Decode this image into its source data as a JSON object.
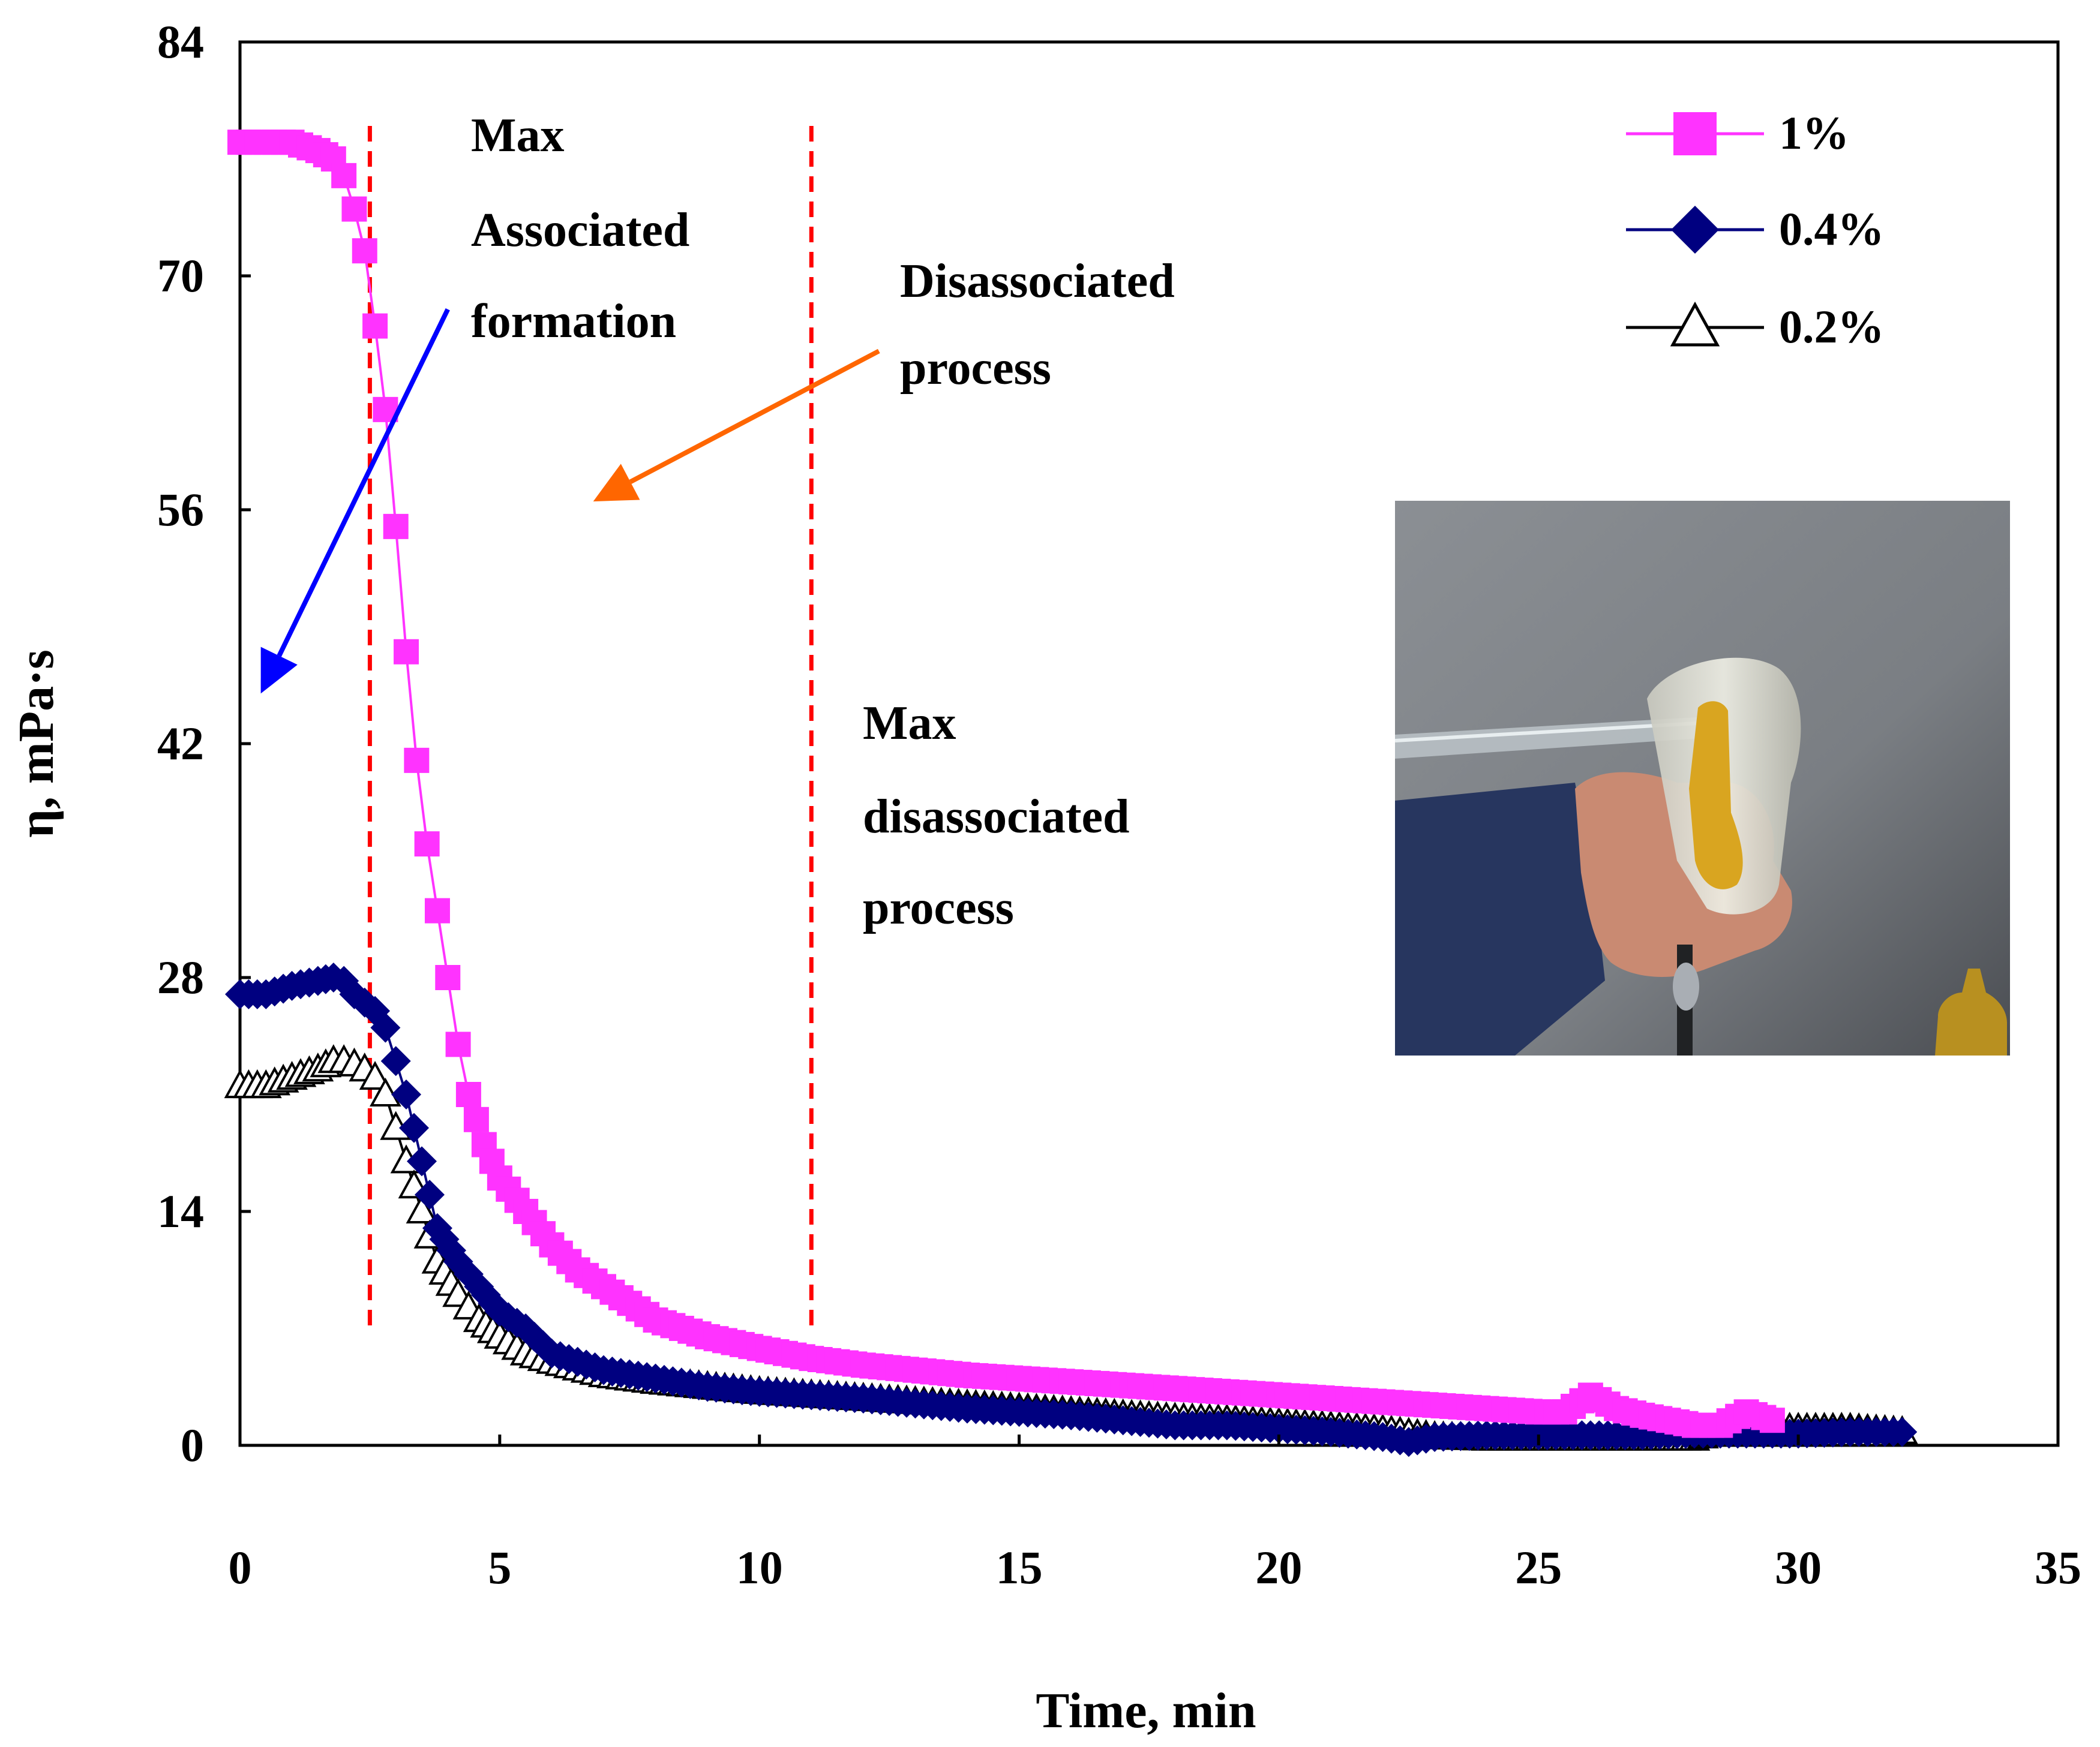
{
  "chart_data": {
    "type": "line",
    "title": "",
    "xlabel": "Time, min",
    "ylabel": "η, mPa·s",
    "xlim": [
      0,
      35
    ],
    "ylim": [
      0,
      84
    ],
    "xticks": [
      0,
      5,
      10,
      15,
      20,
      25,
      30,
      35
    ],
    "yticks": [
      0,
      14,
      28,
      42,
      56,
      70,
      84
    ],
    "xtick_labels": [
      "0",
      "5",
      "10",
      "15",
      "20",
      "25",
      "30",
      "35"
    ],
    "ytick_labels": [
      "0",
      "14",
      "28",
      "42",
      "56",
      "70",
      "84"
    ],
    "grid": false,
    "legend_position": "top-right",
    "series": [
      {
        "name": "1%",
        "marker": "square",
        "color": "#ff33ff",
        "x": [
          0,
          0.5,
          1,
          1.5,
          1.8,
          2.0,
          2.2,
          2.4,
          2.6,
          2.8,
          3.0,
          3.2,
          3.4,
          3.6,
          3.8,
          4.0,
          4.2,
          4.4,
          4.7,
          5.0,
          5.5,
          6.0,
          6.5,
          7.0,
          7.5,
          8.0,
          8.5,
          9.0,
          10.0,
          11.0,
          12.0,
          13.0,
          14.0,
          15.0,
          16.0,
          17.0,
          18.0,
          19.0,
          20.0,
          21.0,
          22.0,
          23.0,
          24.0,
          25.0,
          25.5,
          26.0,
          26.5,
          27.0,
          27.5,
          28.0,
          28.5,
          29.0,
          29.5
        ],
        "y": [
          78,
          78,
          78,
          77.5,
          77,
          76,
          74,
          71.5,
          67,
          62,
          55,
          47.5,
          41,
          36,
          32,
          28,
          24,
          21,
          18,
          16,
          14,
          12,
          10.5,
          9.5,
          8.5,
          7.5,
          7,
          6.5,
          5.8,
          5.2,
          4.8,
          4.5,
          4.2,
          4.0,
          3.8,
          3.6,
          3.4,
          3.2,
          3.0,
          2.8,
          2.6,
          2.4,
          2.2,
          2.0,
          2.0,
          3.0,
          2.2,
          1.8,
          1.5,
          1.2,
          1.2,
          2.0,
          1.5
        ]
      },
      {
        "name": "0.4%",
        "marker": "diamond",
        "color": "#000080",
        "x": [
          0,
          0.5,
          1.0,
          1.5,
          1.8,
          2.0,
          2.2,
          2.4,
          2.6,
          2.8,
          3.0,
          3.2,
          3.5,
          3.8,
          4.2,
          4.6,
          5.0,
          5.5,
          6.0,
          7.0,
          8.0,
          9.0,
          10.0,
          11.0,
          12.0,
          13.0,
          14.0,
          15.0,
          16.0,
          17.0,
          18.0,
          19.0,
          20.0,
          21.0,
          22.0,
          22.5,
          23.0,
          24.0,
          25.0,
          26.0,
          27.0,
          28.0,
          29.0,
          30.0,
          31.0,
          32.0
        ],
        "y": [
          27,
          27,
          27.5,
          27.8,
          28,
          27.8,
          27,
          26.5,
          26,
          25,
          23,
          21,
          17,
          13,
          11,
          9.5,
          8,
          7,
          5.5,
          4.5,
          4.0,
          3.5,
          3.2,
          3.0,
          2.8,
          2.5,
          2.2,
          2.0,
          1.8,
          1.5,
          1.2,
          1.2,
          1.0,
          0.8,
          0.5,
          0.2,
          0.5,
          0.6,
          0.6,
          0.6,
          0.6,
          0.7,
          0.7,
          0.7,
          0.8,
          0.8
        ]
      },
      {
        "name": "0.2%",
        "marker": "triangle",
        "color": "#000000",
        "x": [
          0,
          0.5,
          1.0,
          1.5,
          1.8,
          2.0,
          2.2,
          2.4,
          2.6,
          2.8,
          3.0,
          3.2,
          3.5,
          3.8,
          4.2,
          4.6,
          5.0,
          5.5,
          6.0,
          7.0,
          8.0,
          9.0,
          10.0,
          11.0,
          12.0,
          13.0,
          14.0,
          15.0,
          16.0,
          17.0,
          18.0,
          19.0,
          20.0,
          21.0,
          22.0,
          23.0,
          24.0,
          25.0,
          26.0,
          27.0,
          28.0,
          28.5,
          29.0,
          30.0,
          31.0,
          32.0
        ],
        "y": [
          21.5,
          21.5,
          22,
          22.5,
          23,
          23,
          22.8,
          22.5,
          22,
          21,
          19,
          17,
          14,
          11,
          9,
          7.5,
          6.5,
          5.5,
          5.0,
          4.2,
          3.8,
          3.5,
          3.2,
          3.0,
          2.8,
          2.6,
          2.4,
          2.2,
          2.0,
          1.8,
          1.6,
          1.5,
          1.3,
          1.1,
          0.9,
          0.5,
          0.4,
          0.4,
          0.4,
          0.4,
          0.4,
          0.8,
          1.0,
          1.0,
          1.0,
          0.8
        ]
      }
    ],
    "reference_lines": [
      {
        "x": 2.5,
        "style": "dashed",
        "color": "#ff0000"
      },
      {
        "x": 11.0,
        "style": "dashed",
        "color": "#ff0000"
      }
    ],
    "annotations": [
      {
        "lines": [
          "Max",
          "Associated",
          "formation"
        ]
      },
      {
        "lines": [
          "Disassociated",
          "process"
        ]
      },
      {
        "lines": [
          "Max",
          "disassociated",
          "process"
        ]
      }
    ],
    "arrows": [
      {
        "color": "#0000ff",
        "from": [
          4.0,
          68
        ],
        "to": [
          0.4,
          45
        ]
      },
      {
        "color": "#ff6600",
        "from": [
          12.3,
          65.5
        ],
        "to": [
          6.8,
          56.5
        ]
      }
    ],
    "inset_photo": {
      "subject": "hand-holding-cup-photo",
      "colors": {
        "wall": "#7c8084",
        "sleeve": "#2a3a6a",
        "skin": "#c98a72",
        "liquid": "#d9a520",
        "cup": "#d8d8cc"
      }
    }
  }
}
